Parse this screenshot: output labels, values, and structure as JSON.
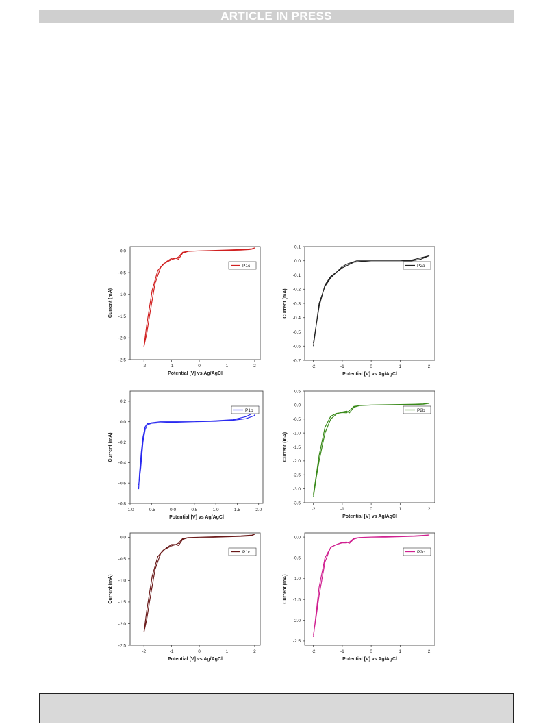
{
  "header": {
    "banner_text": "ARTICLE IN PRESS"
  },
  "chart_data": [
    {
      "type": "line",
      "series_name": "P1c",
      "color": "#d02020",
      "xlabel": "Potential [V] vs Ag/AgCl",
      "ylabel": "Current (mA)",
      "xlim": [
        -2.5,
        2.2
      ],
      "ylim": [
        -2.5,
        0.1
      ],
      "xticks": [
        -2,
        -1,
        0,
        1,
        2
      ],
      "xtick_labels": [
        "-2",
        "-1",
        "0",
        "1",
        "2"
      ],
      "yticks": [
        0.0,
        -0.5,
        -1.0,
        -1.5,
        -2.0,
        -2.5
      ],
      "ytick_labels": [
        "0.0",
        "-0.5",
        "-1.0",
        "-1.5",
        "-2.0",
        "-2.5"
      ],
      "legend": "top-right",
      "x": [
        -2.0,
        -1.9,
        -1.7,
        -1.5,
        -1.3,
        -1.0,
        -0.85,
        -0.75,
        -0.6,
        -0.4,
        0.0,
        0.5,
        1.0,
        1.5,
        1.8,
        1.9,
        2.0,
        1.9,
        1.5,
        1.0,
        0.5,
        0.0,
        -0.4,
        -0.6,
        -0.75,
        -0.85,
        -1.0,
        -1.2,
        -1.4,
        -1.6,
        -1.8,
        -1.9,
        -2.0
      ],
      "y": [
        -2.2,
        -1.7,
        -0.9,
        -0.45,
        -0.3,
        -0.2,
        -0.17,
        -0.19,
        -0.05,
        -0.01,
        0.0,
        0.0,
        0.01,
        0.02,
        0.03,
        0.04,
        0.07,
        0.05,
        0.03,
        0.02,
        0.01,
        0.0,
        -0.01,
        -0.03,
        -0.14,
        -0.17,
        -0.17,
        -0.25,
        -0.38,
        -0.75,
        -1.5,
        -1.9,
        -2.2
      ]
    },
    {
      "type": "line",
      "series_name": "P2a",
      "color": "#222222",
      "xlabel": "Potential [V] vs Ag/AgCl",
      "ylabel": "Current (mA)",
      "xlim": [
        -2.3,
        2.2
      ],
      "ylim": [
        -0.7,
        0.1
      ],
      "xticks": [
        -2,
        -1,
        0,
        1,
        2
      ],
      "xtick_labels": [
        "-2",
        "-1",
        "0",
        "1",
        "2"
      ],
      "yticks": [
        0.1,
        0.0,
        -0.1,
        -0.2,
        -0.3,
        -0.4,
        -0.5,
        -0.6,
        -0.7
      ],
      "ytick_labels": [
        "0.1",
        "0.0",
        "-0.1",
        "-0.2",
        "-0.3",
        "-0.4",
        "-0.5",
        "-0.6",
        "-0.7"
      ],
      "legend": "top-right",
      "x": [
        -2.0,
        -1.9,
        -1.8,
        -1.6,
        -1.4,
        -1.2,
        -1.0,
        -0.8,
        -0.6,
        0.0,
        0.5,
        1.0,
        1.4,
        1.7,
        2.0,
        1.7,
        1.4,
        1.0,
        0.5,
        0.0,
        -0.5,
        -0.8,
        -1.0,
        -1.2,
        -1.4,
        -1.6,
        -1.8,
        -1.9,
        -2.0
      ],
      "y": [
        -0.6,
        -0.45,
        -0.3,
        -0.18,
        -0.12,
        -0.08,
        -0.05,
        -0.03,
        -0.01,
        0.0,
        0.0,
        0.0,
        0.005,
        0.02,
        0.035,
        0.01,
        0.0,
        0.0,
        0.0,
        0.0,
        0.0,
        -0.02,
        -0.04,
        -0.08,
        -0.11,
        -0.17,
        -0.32,
        -0.45,
        -0.58
      ]
    },
    {
      "type": "line",
      "series_name": "P1b",
      "color": "#2a2af0",
      "xlabel": "Potential [V] vs Ag/AgCl",
      "ylabel": "Current (mA)",
      "xlim": [
        -1.0,
        2.1
      ],
      "ylim": [
        -0.8,
        0.3
      ],
      "xticks": [
        -1.0,
        -0.5,
        0.0,
        0.5,
        1.0,
        1.5,
        2.0
      ],
      "xtick_labels": [
        "-1.0",
        "-0.5",
        "0.0",
        "0.5",
        "1.0",
        "1.5",
        "2.0"
      ],
      "yticks": [
        0.2,
        0.0,
        -0.2,
        -0.4,
        -0.6,
        -0.8
      ],
      "ytick_labels": [
        "0.2",
        "0.0",
        "-0.2",
        "-0.4",
        "-0.6",
        "-0.8"
      ],
      "legend": "top-right",
      "x": [
        -0.8,
        -0.78,
        -0.74,
        -0.7,
        -0.65,
        -0.6,
        -0.5,
        -0.3,
        0.0,
        0.5,
        1.0,
        1.4,
        1.7,
        1.9,
        2.0,
        1.9,
        1.7,
        1.4,
        1.0,
        0.5,
        0.0,
        -0.3,
        -0.5,
        -0.6,
        -0.65,
        -0.7,
        -0.75,
        -0.8
      ],
      "y": [
        -0.66,
        -0.5,
        -0.3,
        -0.15,
        -0.05,
        -0.02,
        -0.01,
        0.0,
        0.0,
        0.0,
        0.01,
        0.02,
        0.05,
        0.09,
        0.15,
        0.06,
        0.03,
        0.015,
        0.005,
        0.0,
        -0.005,
        -0.01,
        -0.015,
        -0.03,
        -0.08,
        -0.2,
        -0.45,
        -0.62
      ]
    },
    {
      "type": "line",
      "series_name": "P2b",
      "color": "#3a8a1a",
      "xlabel": "Potential [V] vs Ag/AgCl",
      "ylabel": "Current (mA)",
      "xlim": [
        -2.3,
        2.2
      ],
      "ylim": [
        -3.5,
        0.5
      ],
      "xticks": [
        -2,
        -1,
        0,
        1,
        2
      ],
      "xtick_labels": [
        "-2",
        "-1",
        "0",
        "1",
        "2"
      ],
      "yticks": [
        0.5,
        0.0,
        -0.5,
        -1.0,
        -1.5,
        -2.0,
        -2.5,
        -3.0,
        -3.5
      ],
      "ytick_labels": [
        "0.5",
        "0.0",
        "-0.5",
        "-1.0",
        "-1.5",
        "-2.0",
        "-2.5",
        "-3.0",
        "-3.5"
      ],
      "legend": "top-right",
      "x": [
        -2.0,
        -1.9,
        -1.8,
        -1.6,
        -1.4,
        -1.2,
        -1.0,
        -0.85,
        -0.75,
        -0.6,
        -0.4,
        0.0,
        0.5,
        1.0,
        1.5,
        1.8,
        2.0,
        1.8,
        1.5,
        1.0,
        0.5,
        0.0,
        -0.4,
        -0.6,
        -0.75,
        -0.85,
        -1.0,
        -1.2,
        -1.4,
        -1.6,
        -1.8,
        -1.9,
        -2.0
      ],
      "y": [
        -3.3,
        -2.6,
        -2.0,
        -1.0,
        -0.5,
        -0.32,
        -0.25,
        -0.22,
        -0.28,
        -0.08,
        -0.02,
        0.0,
        0.0,
        0.01,
        0.02,
        0.03,
        0.06,
        0.04,
        0.03,
        0.02,
        0.01,
        0.0,
        -0.02,
        -0.05,
        -0.2,
        -0.28,
        -0.27,
        -0.3,
        -0.4,
        -0.8,
        -1.8,
        -2.5,
        -3.2
      ]
    },
    {
      "type": "line",
      "series_name": "P1c",
      "color": "#6a1a1a",
      "xlabel": "Potential [V] vs Ag/AgCl",
      "ylabel": "Current (mA)",
      "xlim": [
        -2.5,
        2.2
      ],
      "ylim": [
        -2.5,
        0.1
      ],
      "xticks": [
        -2,
        -1,
        0,
        1,
        2
      ],
      "xtick_labels": [
        "-2",
        "-1",
        "0",
        "1",
        "2"
      ],
      "yticks": [
        0.0,
        -0.5,
        -1.0,
        -1.5,
        -2.0,
        -2.5
      ],
      "ytick_labels": [
        "0.0",
        "-0.5",
        "-1.0",
        "-1.5",
        "-2.0",
        "-2.5"
      ],
      "legend": "top-right",
      "x": [
        -2.0,
        -1.9,
        -1.7,
        -1.5,
        -1.3,
        -1.0,
        -0.85,
        -0.75,
        -0.6,
        -0.4,
        0.0,
        0.5,
        1.0,
        1.5,
        1.8,
        1.9,
        2.0,
        1.9,
        1.5,
        1.0,
        0.5,
        0.0,
        -0.4,
        -0.6,
        -0.75,
        -0.85,
        -1.0,
        -1.2,
        -1.4,
        -1.6,
        -1.8,
        -1.9,
        -2.0
      ],
      "y": [
        -2.2,
        -1.7,
        -0.9,
        -0.45,
        -0.3,
        -0.2,
        -0.17,
        -0.19,
        -0.05,
        -0.01,
        0.0,
        0.0,
        0.01,
        0.02,
        0.03,
        0.04,
        0.07,
        0.05,
        0.03,
        0.02,
        0.01,
        0.0,
        -0.01,
        -0.03,
        -0.14,
        -0.17,
        -0.17,
        -0.25,
        -0.38,
        -0.75,
        -1.5,
        -1.9,
        -2.2
      ]
    },
    {
      "type": "line",
      "series_name": "P2c",
      "color": "#d02090",
      "xlabel": "Potential [V] vs Ag/AgCl",
      "ylabel": "Current (mA)",
      "xlim": [
        -2.3,
        2.2
      ],
      "ylim": [
        -2.6,
        0.1
      ],
      "xticks": [
        -2,
        -1,
        0,
        1,
        2
      ],
      "xtick_labels": [
        "-2",
        "-1",
        "0",
        "1",
        "2"
      ],
      "yticks": [
        0.0,
        -0.5,
        -1.0,
        -1.5,
        -2.0,
        -2.5
      ],
      "ytick_labels": [
        "0.0",
        "-0.5",
        "-1.0",
        "-1.5",
        "-2.0",
        "-2.5"
      ],
      "legend": "top-right",
      "x": [
        -2.0,
        -1.9,
        -1.8,
        -1.6,
        -1.4,
        -1.2,
        -1.0,
        -0.85,
        -0.75,
        -0.6,
        -0.4,
        0.0,
        0.5,
        1.0,
        1.5,
        1.8,
        2.0,
        1.8,
        1.5,
        1.0,
        0.5,
        0.0,
        -0.4,
        -0.6,
        -0.75,
        -0.85,
        -1.0,
        -1.2,
        -1.4,
        -1.6,
        -1.8,
        -1.9,
        -2.0
      ],
      "y": [
        -2.4,
        -1.8,
        -1.2,
        -0.5,
        -0.25,
        -0.18,
        -0.13,
        -0.12,
        -0.15,
        -0.05,
        -0.01,
        0.0,
        0.0,
        0.01,
        0.02,
        0.03,
        0.05,
        0.04,
        0.03,
        0.02,
        0.01,
        0.0,
        -0.01,
        -0.03,
        -0.12,
        -0.14,
        -0.14,
        -0.18,
        -0.24,
        -0.6,
        -1.4,
        -1.9,
        -2.35
      ]
    }
  ]
}
